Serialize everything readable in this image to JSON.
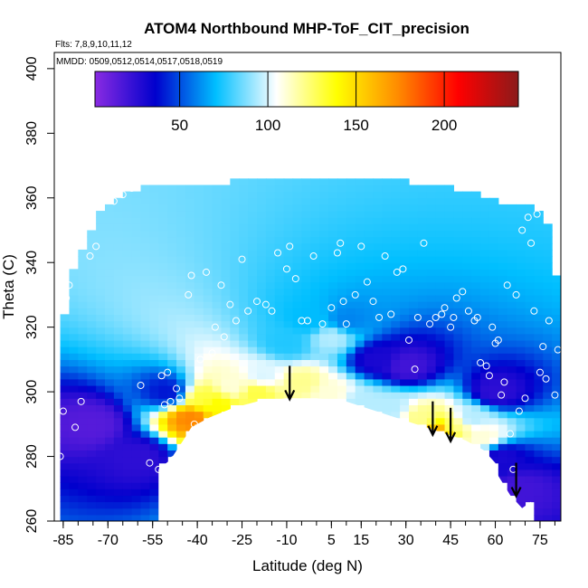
{
  "chart_data": {
    "type": "heatmap",
    "title": "ATOM4 Northbound MHP-ToF_CIT_precision",
    "flights_note": "Flts: 7,8,9,10,11,12",
    "dates_note": "MMDD: 0509,0512,0514,0517,0518,0519",
    "xlabel": "Latitude (deg N)",
    "ylabel": "Theta (C)",
    "xlim": [
      -88,
      82
    ],
    "ylim": [
      260,
      405
    ],
    "x_ticks": [
      -85,
      -70,
      -55,
      -40,
      -25,
      -10,
      5,
      15,
      30,
      45,
      60,
      75
    ],
    "x_tick_labels": [
      "-85",
      "-70",
      "-55",
      "-40",
      "-25",
      "-10",
      "5",
      "15",
      "30",
      "45",
      "60",
      "75"
    ],
    "y_ticks": [
      260,
      280,
      300,
      320,
      340,
      360,
      380,
      400
    ],
    "y_tick_labels": [
      "260",
      "280",
      "300",
      "320",
      "340",
      "360",
      "380",
      "400"
    ],
    "colorbar": {
      "range": [
        2,
        242
      ],
      "ticks": [
        50,
        100,
        150,
        200
      ],
      "tick_labels": [
        "50",
        "100",
        "150",
        "200"
      ],
      "colors": [
        "#8a2be2",
        "#0000cd",
        "#00bfff",
        "#ffffff",
        "#ffff00",
        "#ff8c00",
        "#ff0000",
        "#8b1a1a"
      ]
    },
    "floor_boundary": [
      [
        -53,
        274
      ],
      [
        -53,
        276
      ],
      [
        -49,
        279
      ],
      [
        -44,
        286
      ],
      [
        -42,
        289
      ],
      [
        -36,
        292
      ],
      [
        -28,
        295
      ],
      [
        -20,
        297
      ],
      [
        -10,
        298
      ],
      [
        0,
        298
      ],
      [
        10,
        297
      ],
      [
        20,
        294
      ],
      [
        30,
        291
      ],
      [
        40,
        288
      ],
      [
        50,
        285
      ],
      [
        56,
        282
      ],
      [
        58,
        280
      ],
      [
        60,
        278
      ],
      [
        61,
        274
      ],
      [
        65,
        268
      ],
      [
        69,
        264
      ],
      [
        72,
        266
      ]
    ],
    "top_boundary": [
      [
        -86,
        294
      ],
      [
        -85,
        321
      ],
      [
        -82,
        335
      ],
      [
        -78,
        345
      ],
      [
        -72,
        355
      ],
      [
        -66,
        360
      ],
      [
        -60,
        362
      ],
      [
        -50,
        363
      ],
      [
        -40,
        363
      ],
      [
        -30,
        364
      ],
      [
        -15,
        365
      ],
      [
        0,
        365
      ],
      [
        15,
        365
      ],
      [
        30,
        364
      ],
      [
        45,
        362
      ],
      [
        55,
        360
      ],
      [
        62,
        358
      ],
      [
        67,
        357
      ],
      [
        72,
        356
      ],
      [
        76,
        355
      ],
      [
        78,
        350
      ],
      [
        80,
        340
      ],
      [
        82,
        320
      ]
    ],
    "field_core_points": [
      [
        -10,
        315,
        75
      ],
      [
        -2,
        322,
        70
      ],
      [
        5,
        317,
        95
      ],
      [
        10,
        322,
        60
      ],
      [
        -18,
        305,
        100
      ],
      [
        -28,
        302,
        110
      ],
      [
        -38,
        298,
        130
      ],
      [
        -42,
        292,
        175
      ],
      [
        -34,
        296,
        140
      ],
      [
        -20,
        300,
        130
      ],
      [
        -5,
        303,
        120
      ],
      [
        5,
        300,
        110
      ],
      [
        15,
        297,
        95
      ],
      [
        25,
        295,
        95
      ],
      [
        35,
        292,
        120
      ],
      [
        42,
        288,
        165
      ],
      [
        46,
        289,
        120
      ],
      [
        52,
        292,
        95
      ],
      [
        56,
        286,
        110
      ],
      [
        20,
        310,
        30
      ],
      [
        30,
        308,
        20
      ],
      [
        -60,
        280,
        25
      ],
      [
        -75,
        290,
        15
      ],
      [
        -50,
        300,
        40
      ],
      [
        60,
        300,
        25
      ],
      [
        62,
        280,
        30
      ],
      [
        68,
        270,
        20
      ]
    ],
    "arrows": [
      {
        "lat": -9,
        "theta": 303
      },
      {
        "lat": 39,
        "theta": 292
      },
      {
        "lat": 45,
        "theta": 290
      },
      {
        "lat": 67,
        "theta": 273
      }
    ],
    "sample_points": [
      [
        -86,
        280
      ],
      [
        -85,
        294
      ],
      [
        -84,
        329
      ],
      [
        -83,
        333
      ],
      [
        -81,
        289
      ],
      [
        -79,
        297
      ],
      [
        -76,
        342
      ],
      [
        -74,
        345
      ],
      [
        -68,
        359
      ],
      [
        -65,
        361
      ],
      [
        -62,
        363
      ],
      [
        -59,
        302
      ],
      [
        -56,
        278
      ],
      [
        -53,
        276
      ],
      [
        -52,
        305
      ],
      [
        -51,
        296
      ],
      [
        -50,
        306
      ],
      [
        -49,
        297
      ],
      [
        -48,
        279
      ],
      [
        -47,
        301
      ],
      [
        -46,
        298
      ],
      [
        -43,
        330
      ],
      [
        -42,
        336
      ],
      [
        -41,
        290
      ],
      [
        -39,
        310
      ],
      [
        -37,
        337
      ],
      [
        -35,
        312
      ],
      [
        -34,
        320
      ],
      [
        -32,
        333
      ],
      [
        -31,
        317
      ],
      [
        -29,
        327
      ],
      [
        -27,
        322
      ],
      [
        -25,
        341
      ],
      [
        -23,
        325
      ],
      [
        -20,
        328
      ],
      [
        -17,
        327
      ],
      [
        -15,
        325
      ],
      [
        -13,
        343
      ],
      [
        -10,
        338
      ],
      [
        -9,
        345
      ],
      [
        -7,
        335
      ],
      [
        -5,
        322
      ],
      [
        -3,
        322
      ],
      [
        -1,
        342
      ],
      [
        2,
        321
      ],
      [
        5,
        326
      ],
      [
        7,
        343
      ],
      [
        8,
        346
      ],
      [
        9,
        328
      ],
      [
        10,
        321
      ],
      [
        13,
        330
      ],
      [
        15,
        345
      ],
      [
        17,
        334
      ],
      [
        19,
        328
      ],
      [
        21,
        323
      ],
      [
        23,
        342
      ],
      [
        25,
        324
      ],
      [
        27,
        337
      ],
      [
        29,
        338
      ],
      [
        31,
        316
      ],
      [
        33,
        307
      ],
      [
        34,
        323
      ],
      [
        36,
        346
      ],
      [
        38,
        321
      ],
      [
        40,
        323
      ],
      [
        42,
        324
      ],
      [
        43,
        326
      ],
      [
        45,
        320
      ],
      [
        46,
        323
      ],
      [
        47,
        329
      ],
      [
        49,
        331
      ],
      [
        51,
        325
      ],
      [
        53,
        322
      ],
      [
        54,
        323
      ],
      [
        55,
        309
      ],
      [
        57,
        308
      ],
      [
        58,
        305
      ],
      [
        59,
        320
      ],
      [
        60,
        315
      ],
      [
        61,
        316
      ],
      [
        62,
        299
      ],
      [
        63,
        303
      ],
      [
        64,
        333
      ],
      [
        65,
        287
      ],
      [
        66,
        276
      ],
      [
        67,
        330
      ],
      [
        68,
        294
      ],
      [
        69,
        350
      ],
      [
        70,
        298
      ],
      [
        71,
        354
      ],
      [
        72,
        346
      ],
      [
        73,
        325
      ],
      [
        74,
        355
      ],
      [
        75,
        306
      ],
      [
        76,
        314
      ],
      [
        77,
        304
      ],
      [
        78,
        322
      ],
      [
        80,
        299
      ],
      [
        81,
        313
      ]
    ]
  }
}
